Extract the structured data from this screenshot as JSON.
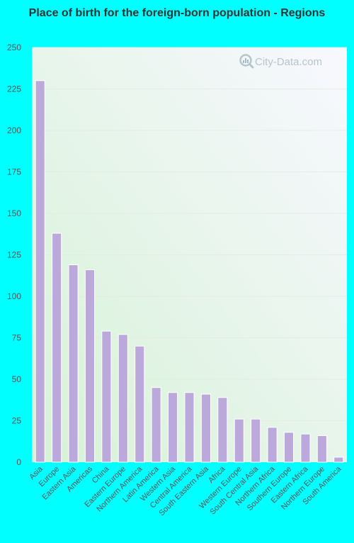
{
  "chart_data": {
    "type": "bar",
    "title": "Place of birth for the foreign-born population - Regions",
    "xlabel": "",
    "ylabel": "",
    "ylim": [
      0,
      250
    ],
    "yticks": [
      0,
      25,
      50,
      75,
      100,
      125,
      150,
      175,
      200,
      225,
      250
    ],
    "grid": true,
    "categories": [
      "Asia",
      "Europe",
      "Eastern Asia",
      "Americas",
      "China",
      "Eastern Europe",
      "Northern America",
      "Latin America",
      "Western Asia",
      "Central America",
      "South Eastern Asia",
      "Africa",
      "Western Europe",
      "South Central Asia",
      "Northern Africa",
      "Southern Europe",
      "Eastern Africa",
      "Northern Europe",
      "South America"
    ],
    "values": [
      230,
      138,
      119,
      116,
      79,
      77,
      70,
      45,
      42,
      42,
      41,
      39,
      26,
      26,
      21,
      18,
      17,
      16,
      3
    ],
    "colors": {
      "bar": "#bca9db",
      "bar_stroke": "#ffffff",
      "page_bg": "#00ffff",
      "plot_bg_bottom_left": "#d6f2d6",
      "plot_bg_top_right": "#f8f8ff",
      "title": "#333333",
      "tick": "#555555"
    }
  },
  "watermark": {
    "text": "City-Data.com",
    "icon": "magnifier-icon"
  }
}
